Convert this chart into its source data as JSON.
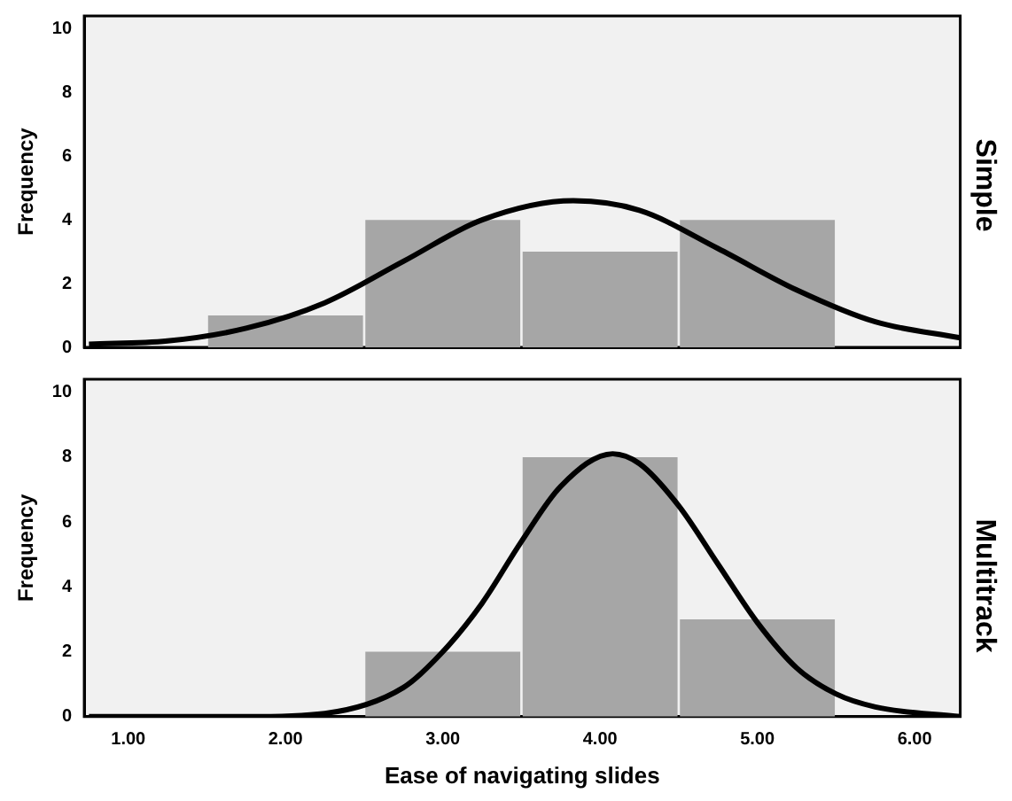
{
  "chart_data": [
    {
      "type": "histogram",
      "title": "Simple",
      "ylabel": "Frequency",
      "bins": [
        1.5,
        2.5,
        3.5,
        4.5,
        5.5
      ],
      "values": [
        1,
        4,
        3,
        4
      ],
      "color": "#a6a6a6",
      "xlim": [
        0.72,
        6.29
      ],
      "ylim": [
        0,
        10.4
      ],
      "yticks": [
        0,
        2,
        4,
        6,
        8,
        10
      ],
      "tick_labels": "y",
      "grid": false,
      "legend": false,
      "series": [
        {
          "type": "line",
          "color": "#000000",
          "x": [
            0.75,
            1.25,
            1.75,
            2.25,
            2.75,
            3.25,
            3.83,
            4.25,
            4.75,
            5.25,
            5.75,
            6.29
          ],
          "values": [
            0.1,
            0.2,
            0.6,
            1.4,
            2.7,
            4.0,
            4.6,
            4.3,
            3.1,
            1.8,
            0.8,
            0.3
          ]
        }
      ]
    },
    {
      "type": "histogram",
      "title": "Multitrack",
      "ylabel": "Frequency",
      "xlabel": "Ease of navigating slides",
      "bins": [
        2.5,
        3.5,
        4.5,
        5.5
      ],
      "values": [
        2,
        8,
        3
      ],
      "color": "#a6a6a6",
      "xlim": [
        0.72,
        6.29
      ],
      "ylim": [
        0,
        10.4
      ],
      "yticks": [
        0,
        2,
        4,
        6,
        8,
        10
      ],
      "xticks": [
        {
          "value": 1,
          "label": "1.00"
        },
        {
          "value": 2,
          "label": "2.00"
        },
        {
          "value": 3,
          "label": "3.00"
        },
        {
          "value": 4,
          "label": "4.00"
        },
        {
          "value": 5,
          "label": "5.00"
        },
        {
          "value": 6,
          "label": "6.00"
        }
      ],
      "grid": false,
      "legend": false,
      "series": [
        {
          "type": "line",
          "color": "#000000",
          "x": [
            0.75,
            1.75,
            2.25,
            2.75,
            3.0,
            3.25,
            3.5,
            3.75,
            4.08,
            4.25,
            4.5,
            4.75,
            5.0,
            5.25,
            5.5,
            5.75,
            6.29
          ],
          "values": [
            0,
            0,
            0.1,
            0.9,
            2.0,
            3.5,
            5.4,
            7.1,
            8.1,
            7.8,
            6.5,
            4.7,
            2.9,
            1.5,
            0.7,
            0.3,
            0
          ]
        }
      ]
    }
  ]
}
